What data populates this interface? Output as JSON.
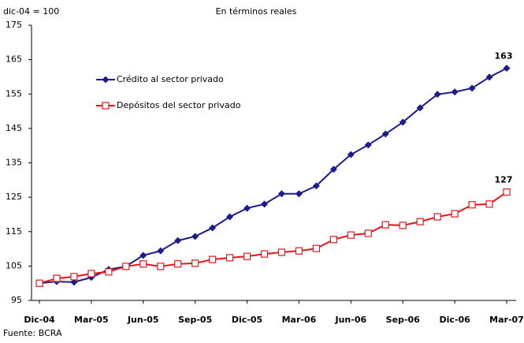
{
  "chart_data": {
    "type": "line",
    "title": "En términos reales",
    "y_label": "dic-04 = 100",
    "source": "Fuente: BCRA",
    "categories": [
      "Dic-04",
      null,
      null,
      "Mar-05",
      null,
      null,
      "Jun-05",
      null,
      null,
      "Sep-05",
      null,
      null,
      "Dic-05",
      null,
      null,
      "Mar-06",
      null,
      null,
      "Jun-06",
      null,
      null,
      "Sep-06",
      null,
      null,
      "Dic-06",
      null,
      null,
      "Mar-07"
    ],
    "series": [
      {
        "name": "Crédito al sector privado",
        "color": "#1c1c8c",
        "marker": "diamond",
        "values": [
          100,
          100.5,
          100.3,
          101.7,
          104,
          104.9,
          108.1,
          109.4,
          112.4,
          113.6,
          116.1,
          119.3,
          121.8,
          123,
          126,
          126,
          128.3,
          133.1,
          137.4,
          140.2,
          143.4,
          146.8,
          151,
          154.9,
          155.6,
          156.7,
          159.9,
          162.5
        ],
        "value_labels": [
          null,
          null,
          null,
          null,
          null,
          null,
          null,
          null,
          null,
          null,
          null,
          null,
          null,
          null,
          null,
          null,
          null,
          null,
          null,
          null,
          null,
          null,
          null,
          null,
          null,
          null,
          null,
          "163"
        ]
      },
      {
        "name": "Depósitos del sector privado",
        "color": "#e8141a",
        "marker": "square",
        "values": [
          100,
          101.4,
          101.9,
          102.8,
          103.3,
          104.9,
          105.6,
          104.9,
          105.6,
          105.8,
          106.9,
          107.4,
          107.8,
          108.5,
          109,
          109.4,
          110.1,
          112.7,
          114,
          114.5,
          117,
          116.8,
          117.9,
          119.3,
          120.2,
          122.8,
          123,
          126.5
        ],
        "value_labels": [
          null,
          null,
          null,
          null,
          null,
          null,
          null,
          null,
          null,
          null,
          null,
          null,
          null,
          null,
          null,
          null,
          null,
          null,
          null,
          null,
          null,
          null,
          null,
          null,
          null,
          null,
          null,
          "127"
        ]
      }
    ],
    "ylim": [
      95,
      175
    ],
    "yticks": [
      95,
      105,
      115,
      125,
      135,
      145,
      155,
      165,
      175
    ]
  }
}
